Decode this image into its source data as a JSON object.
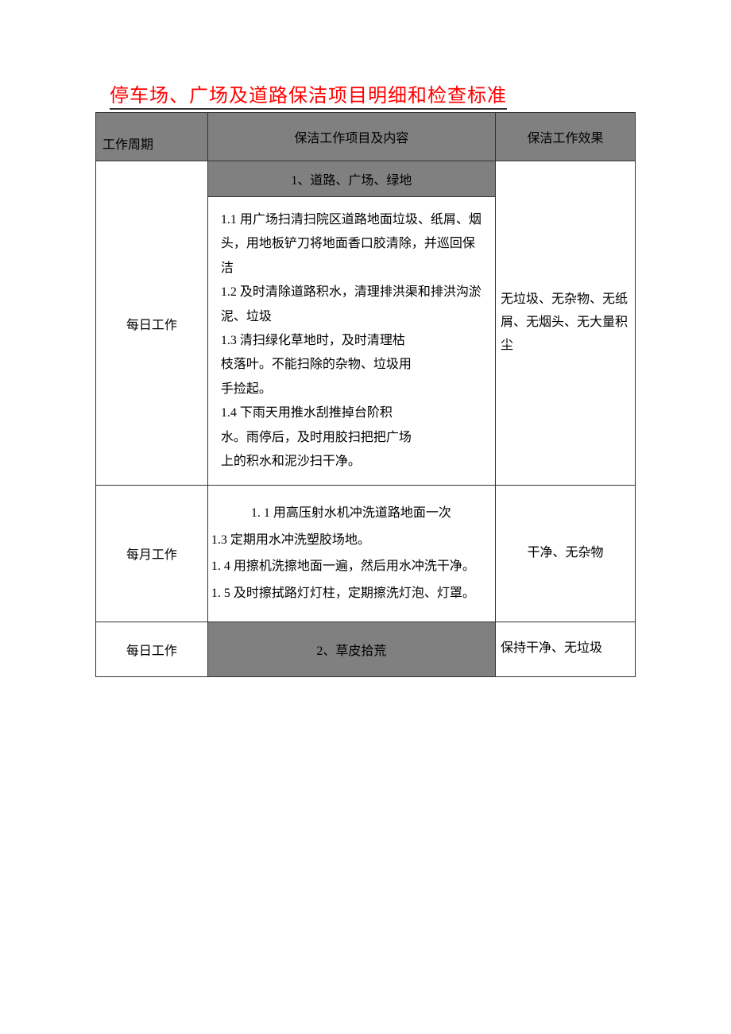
{
  "title": "停车场、广场及道路保洁项目明细和检查标准",
  "colors": {
    "title": "#ff0000",
    "header_bg": "#808080",
    "border": "#333333",
    "text": "#000000",
    "background": "#ffffff"
  },
  "headers": {
    "col1": "工作周期",
    "col2": "保洁工作项目及内容",
    "col3": "保洁工作效果"
  },
  "sections": {
    "s1": {
      "header": "1、道路、广场、绿地",
      "daily_period": "每日工作",
      "daily_content_1": "1.1 用广场扫清扫院区道路地面垃圾、纸屑、烟头，用地板铲刀将地面香口胶清除，并巡回保洁",
      "daily_content_2": "1.2 及时清除道路积水，清理排洪渠和排洪沟淤泥、垃圾",
      "daily_content_3a": "1.3 清扫绿化草地时，及时清理枯",
      "daily_content_3b": "枝落叶。不能扫除的杂物、垃圾用",
      "daily_content_3c": "手捡起。",
      "daily_content_4a": "1.4 下雨天用推水刮推掉台阶积",
      "daily_content_4b": "水。雨停后，及时用胶扫把把广场",
      "daily_content_4c": "上的积水和泥沙扫干净。",
      "daily_effect": "无垃圾、无杂物、无纸屑、无烟头、无大量积尘",
      "monthly_period": "每月工作",
      "monthly_content_1": "1. 1 用高压射水机冲洗道路地面一次",
      "monthly_content_2": "1.3 定期用水冲洗塑胶场地。",
      "monthly_content_3": "1. 4 用擦机洗擦地面一遍，然后用水冲洗干净。",
      "monthly_content_4": "1. 5 及时擦拭路灯灯柱，定期擦洗灯泡、灯罩。",
      "monthly_effect": "干净、无杂物"
    },
    "s2": {
      "header": "2、草皮拾荒",
      "daily_period": "每日工作",
      "daily_effect": "保持干净、无垃圾"
    }
  },
  "layout": {
    "col1_width": 140,
    "col2_width": 360,
    "col3_width": 175,
    "title_fontsize": 24,
    "cell_fontsize": 16
  }
}
